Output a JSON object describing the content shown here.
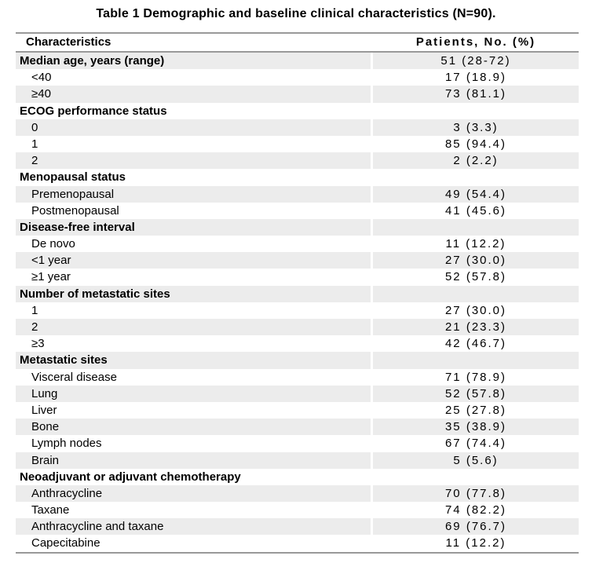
{
  "title": "Table 1 Demographic and baseline clinical characteristics (N=90).",
  "table": {
    "columns": [
      "Characteristics",
      "Patients, No. (%)"
    ],
    "rows": [
      {
        "label": "Median age, years (range)",
        "value": "51 (28-72)",
        "style": "section"
      },
      {
        "label": "<40",
        "value": "17 (18.9)",
        "style": "item"
      },
      {
        "label": "≥40",
        "value": "73 (81.1)",
        "style": "item"
      },
      {
        "label": "ECOG performance status",
        "value": "",
        "style": "section"
      },
      {
        "label": "0",
        "value": "3 (3.3)",
        "style": "item"
      },
      {
        "label": "1",
        "value": "85 (94.4)",
        "style": "item"
      },
      {
        "label": "2",
        "value": "2 (2.2)",
        "style": "item"
      },
      {
        "label": "Menopausal status",
        "value": "",
        "style": "section"
      },
      {
        "label": "Premenopausal",
        "value": "49 (54.4)",
        "style": "item"
      },
      {
        "label": "Postmenopausal",
        "value": "41 (45.6)",
        "style": "item"
      },
      {
        "label": "Disease-free interval",
        "value": "",
        "style": "section"
      },
      {
        "label": "De novo",
        "value": "11 (12.2)",
        "style": "item"
      },
      {
        "label": "<1 year",
        "value": "27 (30.0)",
        "style": "item"
      },
      {
        "label": "≥1 year",
        "value": "52 (57.8)",
        "style": "item"
      },
      {
        "label": "Number of metastatic sites",
        "value": "",
        "style": "section"
      },
      {
        "label": "1",
        "value": "27 (30.0)",
        "style": "item"
      },
      {
        "label": "2",
        "value": "21 (23.3)",
        "style": "item"
      },
      {
        "label": "≥3",
        "value": "42 (46.7)",
        "style": "item"
      },
      {
        "label": "Metastatic sites",
        "value": "",
        "style": "section"
      },
      {
        "label": "Visceral disease",
        "value": "71 (78.9)",
        "style": "item"
      },
      {
        "label": "Lung",
        "value": "52 (57.8)",
        "style": "item"
      },
      {
        "label": "Liver",
        "value": "25 (27.8)",
        "style": "item"
      },
      {
        "label": "Bone",
        "value": "35 (38.9)",
        "style": "item"
      },
      {
        "label": "Lymph nodes",
        "value": "67 (74.4)",
        "style": "item"
      },
      {
        "label": "Brain",
        "value": "5 (5.6)",
        "style": "item"
      },
      {
        "label": "Neoadjuvant or adjuvant chemotherapy",
        "value": "",
        "style": "section"
      },
      {
        "label": "Anthracycline",
        "value": "70 (77.8)",
        "style": "item"
      },
      {
        "label": "Taxane",
        "value": "74 (82.2)",
        "style": "item"
      },
      {
        "label": "Anthracycline and taxane",
        "value": "69 (76.7)",
        "style": "item"
      },
      {
        "label": "Capecitabine",
        "value": "11 (12.2)",
        "style": "item"
      }
    ]
  },
  "colors": {
    "background": "#ffffff",
    "row_shade": "#ececec",
    "rule_line": "#999999",
    "text": "#000000"
  }
}
